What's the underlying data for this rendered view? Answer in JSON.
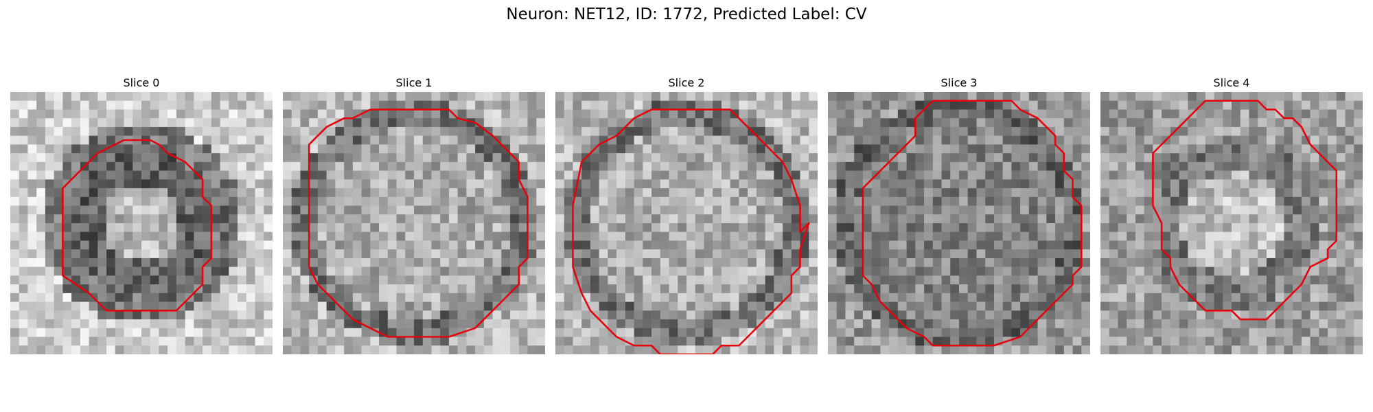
{
  "figure": {
    "title": "Neuron: NET12, ID: 1772, Predicted Label: CV"
  },
  "panels": [
    {
      "label": "Slice 0",
      "grid_size": 30,
      "seed": 11,
      "profile": "ring_bright_core",
      "contour": [
        [
          13,
          5.5
        ],
        [
          16,
          5.5
        ],
        [
          17,
          6
        ],
        [
          18,
          7
        ],
        [
          19,
          7.5
        ],
        [
          20,
          8
        ],
        [
          21,
          9
        ],
        [
          22,
          10
        ],
        [
          22,
          12
        ],
        [
          23,
          13
        ],
        [
          23,
          19
        ],
        [
          22,
          20
        ],
        [
          22,
          22
        ],
        [
          20,
          24
        ],
        [
          19,
          25
        ],
        [
          11,
          25
        ],
        [
          10,
          24
        ],
        [
          9,
          23
        ],
        [
          6,
          21
        ],
        [
          6,
          11
        ],
        [
          7,
          10
        ],
        [
          8,
          9
        ],
        [
          9,
          8
        ],
        [
          10,
          7
        ],
        [
          12,
          6
        ],
        [
          13,
          5.5
        ]
      ],
      "contour_color": "#e8000b"
    },
    {
      "label": "Slice 1",
      "grid_size": 30,
      "seed": 23,
      "profile": "large_disk",
      "contour": [
        [
          10,
          2
        ],
        [
          19,
          2
        ],
        [
          20,
          3
        ],
        [
          22,
          3.5
        ],
        [
          24,
          5
        ],
        [
          26,
          7
        ],
        [
          27,
          8
        ],
        [
          27,
          10
        ],
        [
          28,
          12
        ],
        [
          28,
          19
        ],
        [
          27,
          20
        ],
        [
          27,
          22
        ],
        [
          25,
          24
        ],
        [
          24,
          25
        ],
        [
          22,
          27
        ],
        [
          19,
          28
        ],
        [
          12,
          28
        ],
        [
          10,
          27
        ],
        [
          8,
          26
        ],
        [
          6,
          24
        ],
        [
          4,
          22
        ],
        [
          3,
          20
        ],
        [
          3,
          15
        ],
        [
          3,
          6
        ],
        [
          4,
          5
        ],
        [
          5,
          4
        ],
        [
          7,
          3
        ],
        [
          8,
          3
        ],
        [
          9,
          2.5
        ],
        [
          10,
          2
        ]
      ],
      "contour_color": "#e8000b"
    },
    {
      "label": "Slice 2",
      "grid_size": 30,
      "seed": 37,
      "profile": "large_disk",
      "contour": [
        [
          11,
          2
        ],
        [
          20,
          2
        ],
        [
          22,
          4
        ],
        [
          24,
          6
        ],
        [
          26,
          8
        ],
        [
          27,
          10
        ],
        [
          28,
          13
        ],
        [
          28,
          16
        ],
        [
          29,
          15
        ],
        [
          28,
          18
        ],
        [
          28,
          20
        ],
        [
          27,
          21
        ],
        [
          27,
          23
        ],
        [
          26,
          24
        ],
        [
          24,
          26
        ],
        [
          22,
          28
        ],
        [
          21,
          29
        ],
        [
          19,
          29
        ],
        [
          18,
          30
        ],
        [
          12,
          30
        ],
        [
          11,
          29
        ],
        [
          9,
          29
        ],
        [
          7,
          28
        ],
        [
          5,
          26
        ],
        [
          4,
          25
        ],
        [
          3,
          23
        ],
        [
          2,
          20
        ],
        [
          2,
          13
        ],
        [
          3,
          8
        ],
        [
          5,
          6
        ],
        [
          7,
          5
        ],
        [
          9,
          3
        ],
        [
          10,
          2.5
        ],
        [
          11,
          2
        ]
      ],
      "contour_color": "#e8000b"
    },
    {
      "label": "Slice 3",
      "grid_size": 30,
      "seed": 53,
      "profile": "noisy_disk",
      "contour": [
        [
          12,
          1
        ],
        [
          21,
          1
        ],
        [
          22,
          2
        ],
        [
          24,
          3
        ],
        [
          26,
          5
        ],
        [
          26,
          6
        ],
        [
          27,
          7
        ],
        [
          27,
          9
        ],
        [
          28,
          10
        ],
        [
          28,
          12
        ],
        [
          29,
          13
        ],
        [
          29,
          20
        ],
        [
          28,
          21
        ],
        [
          28,
          22
        ],
        [
          26,
          24
        ],
        [
          25,
          25
        ],
        [
          24,
          26
        ],
        [
          22,
          28
        ],
        [
          19,
          29
        ],
        [
          12,
          29
        ],
        [
          11,
          28
        ],
        [
          9,
          27
        ],
        [
          8,
          26
        ],
        [
          6,
          24
        ],
        [
          5,
          22
        ],
        [
          4,
          21
        ],
        [
          4,
          11
        ],
        [
          5,
          10
        ],
        [
          6,
          9
        ],
        [
          8,
          7
        ],
        [
          9,
          6
        ],
        [
          10,
          5
        ],
        [
          10,
          3
        ],
        [
          11,
          2
        ],
        [
          12,
          1
        ]
      ],
      "contour_color": "#e8000b"
    },
    {
      "label": "Slice 4",
      "grid_size": 30,
      "seed": 71,
      "profile": "ring_dark_edge",
      "contour": [
        [
          12,
          1
        ],
        [
          18,
          1
        ],
        [
          19,
          2
        ],
        [
          20,
          2
        ],
        [
          21,
          3
        ],
        [
          22,
          3
        ],
        [
          23,
          4
        ],
        [
          24,
          6
        ],
        [
          25,
          7
        ],
        [
          27,
          9
        ],
        [
          27,
          17
        ],
        [
          26,
          18
        ],
        [
          26,
          19
        ],
        [
          24,
          20
        ],
        [
          23,
          22
        ],
        [
          22,
          23
        ],
        [
          21,
          24
        ],
        [
          20,
          25
        ],
        [
          19,
          26
        ],
        [
          16,
          26
        ],
        [
          15,
          25
        ],
        [
          12,
          25
        ],
        [
          10,
          23
        ],
        [
          9,
          22
        ],
        [
          8,
          20
        ],
        [
          8,
          19
        ],
        [
          7,
          18
        ],
        [
          7,
          15
        ],
        [
          6,
          13
        ],
        [
          6,
          7
        ],
        [
          7,
          6
        ],
        [
          8,
          5
        ],
        [
          9,
          4
        ],
        [
          10,
          3
        ],
        [
          11,
          2
        ],
        [
          12,
          1
        ]
      ],
      "contour_color": "#e8000b"
    }
  ]
}
